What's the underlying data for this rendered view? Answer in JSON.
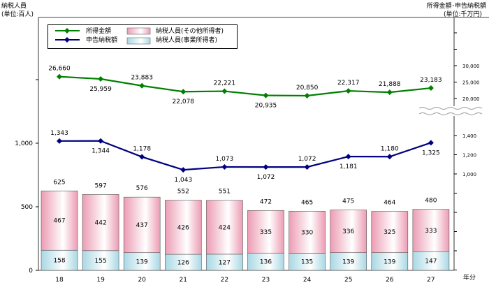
{
  "chart_data": {
    "type": "bar+line",
    "left_axis": {
      "title": "納税人員",
      "unit": "(単位:百人)",
      "range": [
        0,
        1600
      ],
      "tick_labels": [
        "0",
        "500",
        "1,000"
      ]
    },
    "right_axis": {
      "title": "所得金額･申告納税額",
      "unit": "(単位:千万円)",
      "upper_tick_labels": [
        "20,000",
        "25,000",
        "30,000"
      ],
      "upper_range": [
        17000,
        38000
      ],
      "lower_tick_labels": [
        "1,000",
        "1,200",
        "1,400"
      ],
      "lower_range": [
        0,
        1600
      ]
    },
    "xlabel": "年分",
    "categories": [
      "18",
      "19",
      "20",
      "21",
      "22",
      "23",
      "24",
      "25",
      "26",
      "27"
    ],
    "legend": {
      "placement": "top-left",
      "items": [
        "所得金額",
        "申告納税額",
        "納税人員(その他所得者)",
        "納税人員(事業所得者)"
      ]
    },
    "bar_series": [
      {
        "name": "納税人員(事業所得者)",
        "values": [
          158,
          155,
          139,
          126,
          127,
          136,
          135,
          139,
          139,
          147
        ],
        "labels": [
          "158",
          "155",
          "139",
          "126",
          "127",
          "136",
          "135",
          "139",
          "139",
          "147"
        ],
        "color": "#a8d8e4"
      },
      {
        "name": "納税人員(その他所得者)",
        "values": [
          467,
          442,
          437,
          426,
          424,
          335,
          330,
          336,
          325,
          333
        ],
        "labels": [
          "467",
          "442",
          "437",
          "426",
          "424",
          "335",
          "330",
          "336",
          "325",
          "333"
        ],
        "color": "#ec9cb4"
      }
    ],
    "bar_totals": [
      "625",
      "597",
      "576",
      "552",
      "551",
      "472",
      "465",
      "475",
      "464",
      "480"
    ],
    "line_series": [
      {
        "name": "所得金額",
        "values": [
          26660,
          25959,
          23883,
          22078,
          22221,
          20935,
          20850,
          22317,
          21888,
          23183
        ],
        "labels": [
          "26,660",
          "25,959",
          "23,883",
          "22,078",
          "22,221",
          "20,935",
          "20,850",
          "22,317",
          "21,888",
          "23,183"
        ],
        "label_side": [
          "above",
          "below",
          "above",
          "below",
          "above",
          "below",
          "above",
          "above",
          "above",
          "above"
        ],
        "color": "#008000"
      },
      {
        "name": "申告納税額",
        "values": [
          1343,
          1344,
          1178,
          1043,
          1073,
          1072,
          1072,
          1181,
          1180,
          1325
        ],
        "labels": [
          "1,343",
          "1,344",
          "1,178",
          "1,043",
          "1,073",
          "1,072",
          "1,072",
          "1,181",
          "1,180",
          "1,325"
        ],
        "label_side": [
          "above",
          "below",
          "above",
          "below",
          "above",
          "below",
          "above",
          "below",
          "above",
          "below"
        ],
        "color": "#000080"
      }
    ]
  }
}
